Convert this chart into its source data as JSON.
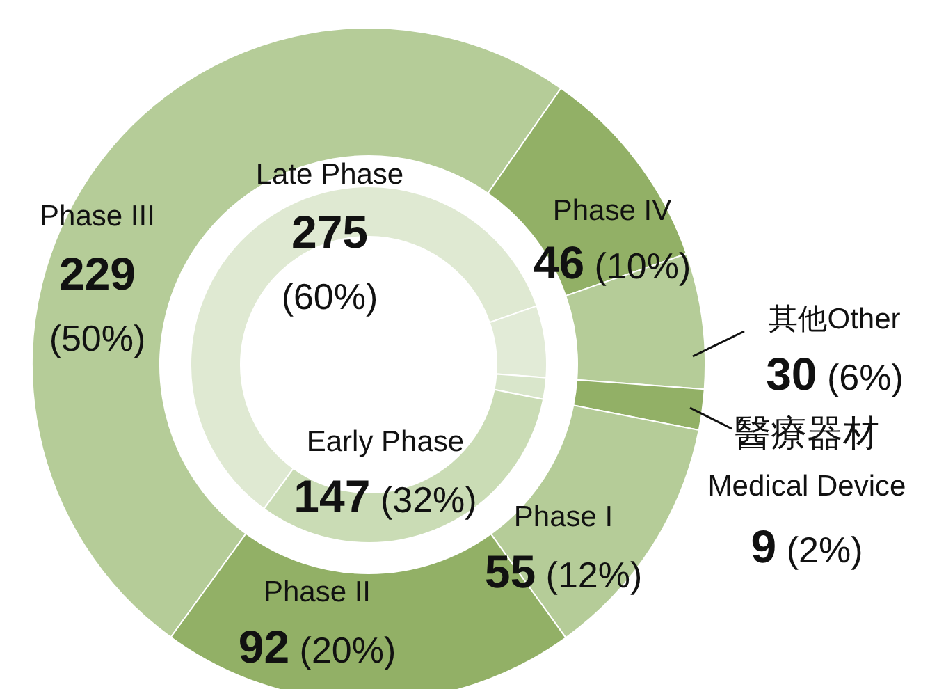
{
  "chart_data": [
    {
      "type": "donut",
      "categories": [
        "Phase III",
        "Phase IV",
        "其他Other",
        "醫療器材\nMedical Device",
        "Phase I",
        "Phase II"
      ],
      "values": [
        229,
        46,
        30,
        9,
        55,
        92
      ],
      "colors": [
        "#b5cc98",
        "#92b066",
        "#b5cc98",
        "#92b066",
        "#b5cc98",
        "#92b066"
      ],
      "value_labels": [
        "**229** (50%)",
        "**46** (10%)",
        "**30** (6%)",
        "**9** (2%)",
        "**55** (12%)",
        "**92** (20%)"
      ]
    },
    {
      "type": "donut",
      "categories": [
        "Late Phase",
        null,
        null,
        "Early Phase"
      ],
      "values": [
        275,
        30,
        9,
        147
      ],
      "colors": [
        "#dfe9d2",
        "#e2ebd7",
        "#d9e6cb",
        "#cadcb5"
      ],
      "value_labels": [
        "**275** (60%)",
        null,
        null,
        "**147** (32%)"
      ]
    }
  ]
}
